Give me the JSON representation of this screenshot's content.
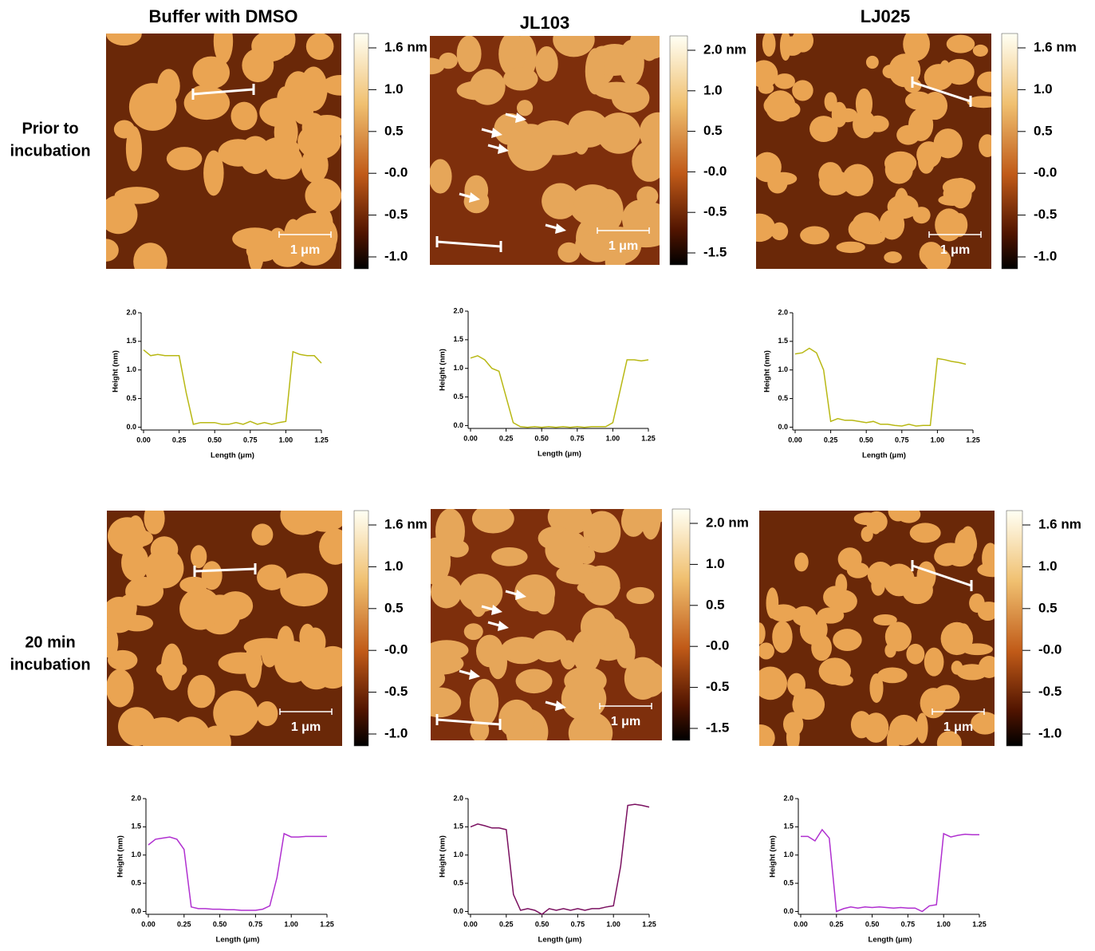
{
  "figure": {
    "columns": [
      "Buffer with DMSO",
      "JL103",
      "LJ025"
    ],
    "rows": [
      [
        "Prior to",
        "incubation"
      ],
      [
        "20 min",
        "incubation"
      ]
    ],
    "panels": [
      {
        "colorbar": [
          "1.6 nm",
          "1.0",
          "0.5",
          "-0.0",
          "-0.5",
          "-1.0"
        ],
        "scale": "1 μm"
      },
      {
        "colorbar": [
          "2.0 nm",
          "1.0",
          "0.5",
          "-0.0",
          "-0.5",
          "-1.5"
        ],
        "scale": "1 μm"
      },
      {
        "colorbar": [
          "1.6 nm",
          "1.0",
          "0.5",
          "-0.0",
          "-0.5",
          "-1.0"
        ],
        "scale": "1 μm"
      },
      {
        "colorbar": [
          "1.6 nm",
          "1.0",
          "0.5",
          "-0.0",
          "-0.5",
          "-1.0"
        ],
        "scale": "1 μm"
      },
      {
        "colorbar": [
          "2.0 nm",
          "1.0",
          "0.5",
          "-0.0",
          "-0.5",
          "-1.5"
        ],
        "scale": "1 μm"
      },
      {
        "colorbar": [
          "1.6 nm",
          "1.0",
          "0.5",
          "-0.0",
          "-0.5",
          "-1.0"
        ],
        "scale": "1 μm"
      }
    ]
  },
  "chart_data": [
    {
      "type": "line",
      "xlabel": "Length (μm)",
      "ylabel": "Height (nm)",
      "color": "#b8b814",
      "x": [
        0,
        0.05,
        0.1,
        0.15,
        0.2,
        0.25,
        0.3,
        0.35,
        0.4,
        0.45,
        0.5,
        0.55,
        0.6,
        0.65,
        0.7,
        0.75,
        0.8,
        0.85,
        0.9,
        0.95,
        1.0,
        1.05,
        1.1,
        1.15,
        1.2,
        1.25
      ],
      "values": [
        1.35,
        1.25,
        1.27,
        1.25,
        1.25,
        1.25,
        0.6,
        0.05,
        0.08,
        0.08,
        0.08,
        0.05,
        0.05,
        0.08,
        0.05,
        0.1,
        0.05,
        0.08,
        0.05,
        0.08,
        0.1,
        1.32,
        1.27,
        1.25,
        1.25,
        1.12
      ],
      "xlim": [
        0,
        1.25
      ],
      "ylim": [
        -0.05,
        2
      ],
      "xticks": [
        {
          "value": 0,
          "label": "0.00"
        },
        {
          "value": 0.25,
          "label": "0.25"
        },
        {
          "value": 0.5,
          "label": "0.50"
        },
        {
          "value": 0.75,
          "label": "0.75"
        },
        {
          "value": 1,
          "label": "1.00"
        },
        {
          "value": 1.25,
          "label": "1.25"
        }
      ],
      "yticks": [
        {
          "value": 0,
          "label": "0.0"
        },
        {
          "value": 0.5,
          "label": "0.5"
        },
        {
          "value": 1,
          "label": "1.0"
        },
        {
          "value": 1.5,
          "label": "1.5"
        },
        {
          "value": 2,
          "label": "2.0"
        }
      ]
    },
    {
      "type": "line",
      "xlabel": "Length (μm)",
      "ylabel": "Height (nm)",
      "color": "#b8b814",
      "x": [
        0,
        0.05,
        0.1,
        0.15,
        0.2,
        0.25,
        0.3,
        0.35,
        0.4,
        0.45,
        0.5,
        0.55,
        0.6,
        0.65,
        0.7,
        0.75,
        0.8,
        0.85,
        0.9,
        0.95,
        1.0,
        1.05,
        1.1,
        1.15,
        1.2,
        1.25
      ],
      "values": [
        1.18,
        1.22,
        1.15,
        1.0,
        0.95,
        0.5,
        0.05,
        -0.02,
        -0.03,
        -0.02,
        -0.03,
        -0.02,
        -0.03,
        -0.02,
        -0.03,
        -0.02,
        -0.03,
        -0.02,
        -0.02,
        -0.02,
        0.05,
        0.6,
        1.15,
        1.15,
        1.13,
        1.15
      ],
      "xlim": [
        0,
        1.25
      ],
      "ylim": [
        -0.05,
        2
      ],
      "xticks": [
        {
          "value": 0,
          "label": "0.00"
        },
        {
          "value": 0.25,
          "label": "0.25"
        },
        {
          "value": 0.5,
          "label": "0.50"
        },
        {
          "value": 0.75,
          "label": "0.75"
        },
        {
          "value": 1,
          "label": "1.00"
        },
        {
          "value": 1.25,
          "label": "1.25"
        }
      ],
      "yticks": [
        {
          "value": 0,
          "label": "0.0"
        },
        {
          "value": 0.5,
          "label": "0.5"
        },
        {
          "value": 1,
          "label": "1.0"
        },
        {
          "value": 1.5,
          "label": "1.5"
        },
        {
          "value": 2,
          "label": "2.0"
        }
      ]
    },
    {
      "type": "line",
      "xlabel": "Length (μm)",
      "ylabel": "Height (nm)",
      "color": "#b8b814",
      "x": [
        0,
        0.05,
        0.1,
        0.15,
        0.2,
        0.25,
        0.3,
        0.35,
        0.4,
        0.45,
        0.5,
        0.55,
        0.6,
        0.65,
        0.7,
        0.75,
        0.8,
        0.85,
        0.9,
        0.95,
        1.0,
        1.05,
        1.1,
        1.15,
        1.2
      ],
      "values": [
        1.28,
        1.3,
        1.38,
        1.3,
        1.0,
        0.1,
        0.15,
        0.12,
        0.12,
        0.1,
        0.08,
        0.1,
        0.05,
        0.05,
        0.03,
        0.02,
        0.05,
        0.02,
        0.03,
        0.03,
        1.2,
        1.18,
        1.15,
        1.13,
        1.1
      ],
      "xlim": [
        0,
        1.25
      ],
      "ylim": [
        -0.05,
        2
      ],
      "xticks": [
        {
          "value": 0,
          "label": "0.00"
        },
        {
          "value": 0.25,
          "label": "0.25"
        },
        {
          "value": 0.5,
          "label": "0.50"
        },
        {
          "value": 0.75,
          "label": "0.75"
        },
        {
          "value": 1,
          "label": "1.00"
        },
        {
          "value": 1.25,
          "label": "1.25"
        }
      ],
      "yticks": [
        {
          "value": 0,
          "label": "0.0"
        },
        {
          "value": 0.5,
          "label": "0.5"
        },
        {
          "value": 1,
          "label": "1.0"
        },
        {
          "value": 1.5,
          "label": "1.5"
        },
        {
          "value": 2,
          "label": "2.0"
        }
      ]
    },
    {
      "type": "line",
      "xlabel": "Length (μm)",
      "ylabel": "Height (nm)",
      "color": "#b030d0",
      "x": [
        0,
        0.05,
        0.1,
        0.15,
        0.2,
        0.25,
        0.3,
        0.35,
        0.4,
        0.45,
        0.5,
        0.55,
        0.6,
        0.65,
        0.7,
        0.75,
        0.8,
        0.85,
        0.9,
        0.95,
        1.0,
        1.05,
        1.1,
        1.15,
        1.2,
        1.25
      ],
      "values": [
        1.18,
        1.28,
        1.3,
        1.32,
        1.28,
        1.1,
        0.08,
        0.05,
        0.05,
        0.04,
        0.04,
        0.03,
        0.03,
        0.02,
        0.02,
        0.02,
        0.04,
        0.1,
        0.6,
        1.38,
        1.32,
        1.32,
        1.33,
        1.33,
        1.33,
        1.33
      ],
      "xlim": [
        0,
        1.25
      ],
      "ylim": [
        -0.05,
        2
      ],
      "xticks": [
        {
          "value": 0,
          "label": "0.00"
        },
        {
          "value": 0.25,
          "label": "0.25"
        },
        {
          "value": 0.5,
          "label": "0.50"
        },
        {
          "value": 0.75,
          "label": "0.75"
        },
        {
          "value": 1,
          "label": "1.00"
        },
        {
          "value": 1.25,
          "label": "1.25"
        }
      ],
      "yticks": [
        {
          "value": 0,
          "label": "0.0"
        },
        {
          "value": 0.5,
          "label": "0.5"
        },
        {
          "value": 1,
          "label": "1.0"
        },
        {
          "value": 1.5,
          "label": "1.5"
        },
        {
          "value": 2,
          "label": "2.0"
        }
      ]
    },
    {
      "type": "line",
      "xlabel": "Length (μm)",
      "ylabel": "Height (nm)",
      "color": "#7a1060",
      "x": [
        0,
        0.05,
        0.1,
        0.15,
        0.2,
        0.25,
        0.3,
        0.35,
        0.4,
        0.45,
        0.5,
        0.55,
        0.6,
        0.65,
        0.7,
        0.75,
        0.8,
        0.85,
        0.9,
        0.95,
        1.0,
        1.05,
        1.1,
        1.15,
        1.2,
        1.25
      ],
      "values": [
        1.5,
        1.55,
        1.52,
        1.48,
        1.48,
        1.45,
        0.3,
        0.02,
        0.05,
        0.02,
        -0.05,
        0.05,
        0.02,
        0.05,
        0.02,
        0.05,
        0.02,
        0.05,
        0.05,
        0.08,
        0.1,
        0.8,
        1.88,
        1.9,
        1.88,
        1.85
      ],
      "xlim": [
        0,
        1.25
      ],
      "ylim": [
        -0.05,
        2
      ],
      "xticks": [
        {
          "value": 0,
          "label": "0.00"
        },
        {
          "value": 0.25,
          "label": "0.25"
        },
        {
          "value": 0.5,
          "label": "0.50"
        },
        {
          "value": 0.75,
          "label": "0.75"
        },
        {
          "value": 1,
          "label": "1.00"
        },
        {
          "value": 1.25,
          "label": "1.25"
        }
      ],
      "yticks": [
        {
          "value": 0,
          "label": "0.0"
        },
        {
          "value": 0.5,
          "label": "0.5"
        },
        {
          "value": 1,
          "label": "1.0"
        },
        {
          "value": 1.5,
          "label": "1.5"
        },
        {
          "value": 2,
          "label": "2.0"
        }
      ]
    },
    {
      "type": "line",
      "xlabel": "Length (μm)",
      "ylabel": "Height (nm)",
      "color": "#b030d0",
      "x": [
        0,
        0.05,
        0.1,
        0.15,
        0.2,
        0.25,
        0.3,
        0.35,
        0.4,
        0.45,
        0.5,
        0.55,
        0.6,
        0.65,
        0.7,
        0.75,
        0.8,
        0.85,
        0.9,
        0.95,
        1.0,
        1.05,
        1.1,
        1.15,
        1.2,
        1.25
      ],
      "values": [
        1.33,
        1.33,
        1.25,
        1.45,
        1.3,
        0.0,
        0.05,
        0.08,
        0.06,
        0.08,
        0.07,
        0.08,
        0.07,
        0.06,
        0.07,
        0.06,
        0.06,
        0.0,
        0.1,
        0.12,
        1.38,
        1.32,
        1.35,
        1.37,
        1.36,
        1.36
      ],
      "xlim": [
        0,
        1.25
      ],
      "ylim": [
        -0.05,
        2
      ],
      "xticks": [
        {
          "value": 0,
          "label": "0.00"
        },
        {
          "value": 0.25,
          "label": "0.25"
        },
        {
          "value": 0.5,
          "label": "0.50"
        },
        {
          "value": 0.75,
          "label": "0.75"
        },
        {
          "value": 1,
          "label": "1.00"
        },
        {
          "value": 1.25,
          "label": "1.25"
        }
      ],
      "yticks": [
        {
          "value": 0,
          "label": "0.0"
        },
        {
          "value": 0.5,
          "label": "0.5"
        },
        {
          "value": 1,
          "label": "1.0"
        },
        {
          "value": 1.5,
          "label": "1.5"
        },
        {
          "value": 2,
          "label": "2.0"
        }
      ]
    }
  ]
}
